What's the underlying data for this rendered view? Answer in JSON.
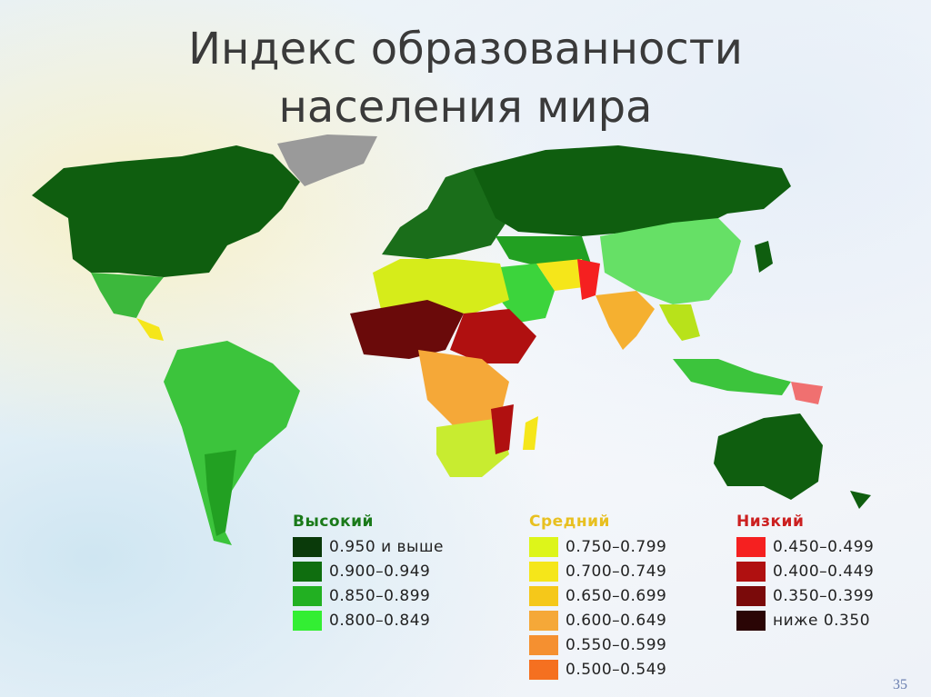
{
  "title": {
    "lines": [
      "Индекс образованности",
      "населения мира"
    ]
  },
  "legend": [
    {
      "heading": "Высокий",
      "color": "#1a7a1a",
      "items": [
        {
          "label": "0.950 и выше",
          "color": "#0a3a0a"
        },
        {
          "label": "0.900–0.949",
          "color": "#0f6e0f"
        },
        {
          "label": "0.850–0.899",
          "color": "#22b022"
        },
        {
          "label": "0.800–0.849",
          "color": "#33ee33"
        }
      ]
    },
    {
      "heading": "Средний",
      "color": "#e8c020",
      "items": [
        {
          "label": "0.750–0.799",
          "color": "#ddf51a"
        },
        {
          "label": "0.700–0.749",
          "color": "#f5e61a"
        },
        {
          "label": "0.650–0.699",
          "color": "#f5c81a"
        },
        {
          "label": "0.600–0.649",
          "color": "#f5a838"
        },
        {
          "label": "0.550–0.599",
          "color": "#f59030"
        },
        {
          "label": "0.500–0.549",
          "color": "#f57020"
        }
      ]
    },
    {
      "heading": "Низкий",
      "color": "#cc2020",
      "items": [
        {
          "label": "0.450–0.499",
          "color": "#f52020"
        },
        {
          "label": "0.400–0.449",
          "color": "#b01010"
        },
        {
          "label": "0.350–0.399",
          "color": "#7a0a0a"
        },
        {
          "label": "ниже 0.350",
          "color": "#2a0505"
        }
      ]
    }
  ],
  "page_number": "35"
}
